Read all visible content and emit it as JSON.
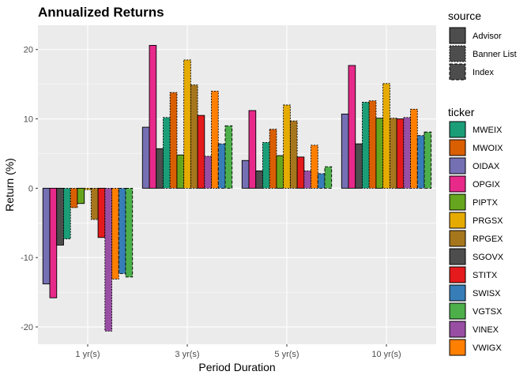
{
  "chart_data": {
    "type": "bar",
    "title": "Annualized Returns",
    "xlabel": "Period Duration",
    "ylabel": "Return (%)",
    "ylim": [
      -22.5,
      23.5
    ],
    "yticks": [
      -20,
      -10,
      0,
      10,
      20
    ],
    "grid": true,
    "legend_position": "right",
    "categories": [
      "1 yr(s)",
      "3 yr(s)",
      "5 yr(s)",
      "10 yr(s)"
    ],
    "bar_order": [
      "OIDAX",
      "OPGIX",
      "SGOVX",
      "MWEIX",
      "MWOIX",
      "PIPTX",
      "PRGSX",
      "RPGEX",
      "STITX",
      "VINEX",
      "VWIGX",
      "SWISX",
      "VGTSX"
    ],
    "series": [
      {
        "name": "OIDAX",
        "source": "Advisor",
        "color": "#7570B3",
        "values": [
          -13.8,
          8.8,
          4.0,
          10.7
        ]
      },
      {
        "name": "OPGIX",
        "source": "Advisor",
        "color": "#E7298A",
        "values": [
          -15.8,
          20.6,
          11.2,
          17.7
        ]
      },
      {
        "name": "SGOVX",
        "source": "Advisor",
        "color": "#4D4D4D",
        "values": [
          -8.2,
          5.7,
          2.5,
          6.4
        ]
      },
      {
        "name": "MWEIX",
        "source": "Banner List",
        "color": "#1B9E77",
        "values": [
          -7.3,
          10.2,
          6.6,
          12.4
        ]
      },
      {
        "name": "MWOIX",
        "source": "Banner List",
        "color": "#D95F02",
        "values": [
          -2.8,
          13.8,
          8.5,
          12.6
        ]
      },
      {
        "name": "PIPTX",
        "source": "Advisor",
        "color": "#66A61E",
        "values": [
          -2.2,
          4.8,
          4.7,
          10.1
        ]
      },
      {
        "name": "PRGSX",
        "source": "Banner List",
        "color": "#E6AB02",
        "values": [
          -0.2,
          18.5,
          12.0,
          15.1
        ]
      },
      {
        "name": "RPGEX",
        "source": "Banner List",
        "color": "#A6761D",
        "values": [
          -4.5,
          14.9,
          9.7,
          10.1
        ]
      },
      {
        "name": "STITX",
        "source": "Advisor",
        "color": "#E41A1C",
        "values": [
          -7.1,
          10.5,
          4.5,
          10.0
        ]
      },
      {
        "name": "VINEX",
        "source": "Banner List",
        "color": "#984EA3",
        "values": [
          -20.6,
          4.6,
          2.5,
          10.2
        ]
      },
      {
        "name": "VWIGX",
        "source": "Banner List",
        "color": "#FF7F00",
        "values": [
          -13.1,
          14.0,
          6.2,
          11.4
        ]
      },
      {
        "name": "SWISX",
        "source": "Index",
        "color": "#377EB8",
        "values": [
          -12.3,
          6.4,
          2.1,
          7.6
        ]
      },
      {
        "name": "VGTSX",
        "source": "Index",
        "color": "#4DAF4A",
        "values": [
          -12.8,
          9.0,
          3.1,
          8.1
        ]
      }
    ]
  },
  "legend": {
    "source_title": "source",
    "source_items": [
      {
        "label": "Advisor",
        "dash": "solid"
      },
      {
        "label": "Banner List",
        "dash": "dotted"
      },
      {
        "label": "Index",
        "dash": "dashed"
      }
    ],
    "ticker_title": "ticker",
    "ticker_items": [
      {
        "label": "MWEIX",
        "color": "#1B9E77"
      },
      {
        "label": "MWOIX",
        "color": "#D95F02"
      },
      {
        "label": "OIDAX",
        "color": "#7570B3"
      },
      {
        "label": "OPGIX",
        "color": "#E7298A"
      },
      {
        "label": "PIPTX",
        "color": "#66A61E"
      },
      {
        "label": "PRGSX",
        "color": "#E6AB02"
      },
      {
        "label": "RPGEX",
        "color": "#A6761D"
      },
      {
        "label": "SGOVX",
        "color": "#4D4D4D"
      },
      {
        "label": "STITX",
        "color": "#E41A1C"
      },
      {
        "label": "SWISX",
        "color": "#377EB8"
      },
      {
        "label": "VGTSX",
        "color": "#4DAF4A"
      },
      {
        "label": "VINEX",
        "color": "#984EA3"
      },
      {
        "label": "VWIGX",
        "color": "#FF7F00"
      }
    ]
  },
  "colors": {
    "panel_background": "#EBEBEB",
    "grid_line": "#FFFFFF",
    "text": "#1A1A1A",
    "tick_text": "#4D4D4D"
  }
}
